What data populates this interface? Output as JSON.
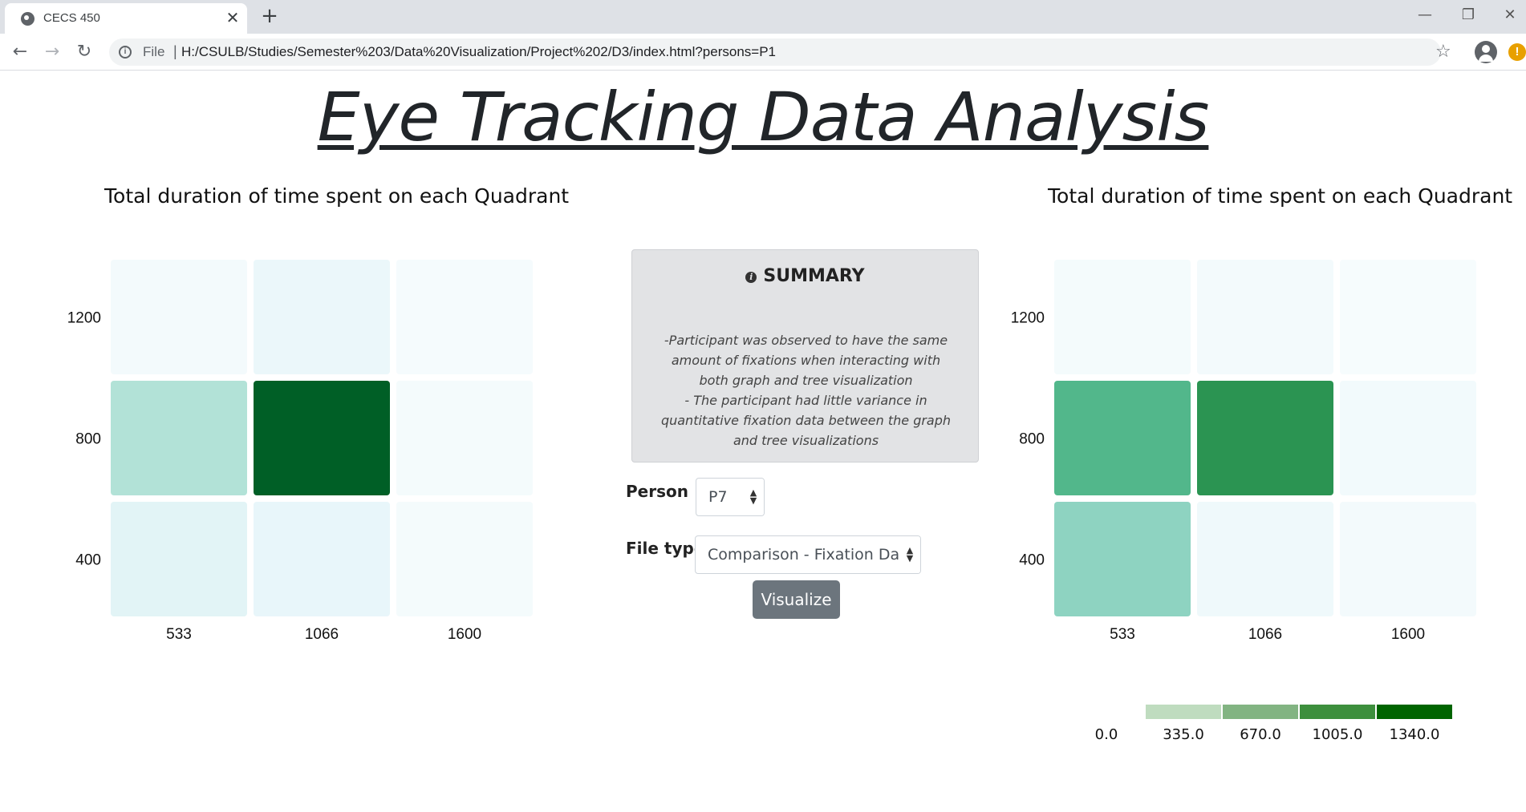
{
  "browser": {
    "tab_title": "CECS 450",
    "url_scheme": "File",
    "url_separator": "|",
    "url": "H:/CSULB/Studies/Semester%203/Data%20Visualization/Project%202/D3/index.html?persons=P1"
  },
  "page": {
    "title": "Eye Tracking Data Analysis"
  },
  "summary": {
    "heading": "SUMMARY",
    "lines": [
      "-Participant was observed to have the same",
      "amount of fixations when interacting with",
      "both graph and tree visualization",
      "- The participant had little variance in",
      "quantitative fixation data between the graph",
      "and tree visualizations"
    ]
  },
  "form": {
    "person_label": "Person",
    "person_value": "P7",
    "filetype_label": "File type",
    "filetype_value": "Comparison - Fixation Data",
    "visualize_label": "Visualize"
  },
  "colors": {
    "heat_low": "#f7fcfd",
    "heat_high": "#00441b"
  },
  "chart_data": [
    {
      "type": "heatmap",
      "title": "Total duration of time spent on each Quadrant",
      "x_categories": [
        "533",
        "1066",
        "1600"
      ],
      "y_categories": [
        "1200",
        "800",
        "400"
      ],
      "values": [
        [
          40,
          110,
          20
        ],
        [
          420,
          1230,
          30
        ],
        [
          190,
          140,
          25
        ]
      ]
    },
    {
      "type": "heatmap",
      "title": "Total duration of time spent on each Quadrant",
      "x_categories": [
        "533",
        "1066",
        "1600"
      ],
      "y_categories": [
        "1200",
        "800",
        "400"
      ],
      "values": [
        [
          30,
          40,
          10
        ],
        [
          760,
          960,
          45
        ],
        [
          540,
          70,
          40
        ]
      ],
      "legend": {
        "ticks": [
          "0.0",
          "335.0",
          "670.0",
          "1005.0",
          "1340.0"
        ],
        "colors": [
          "#bfdcbf",
          "#82b482",
          "#3d8f3d",
          "#006400"
        ]
      }
    }
  ]
}
